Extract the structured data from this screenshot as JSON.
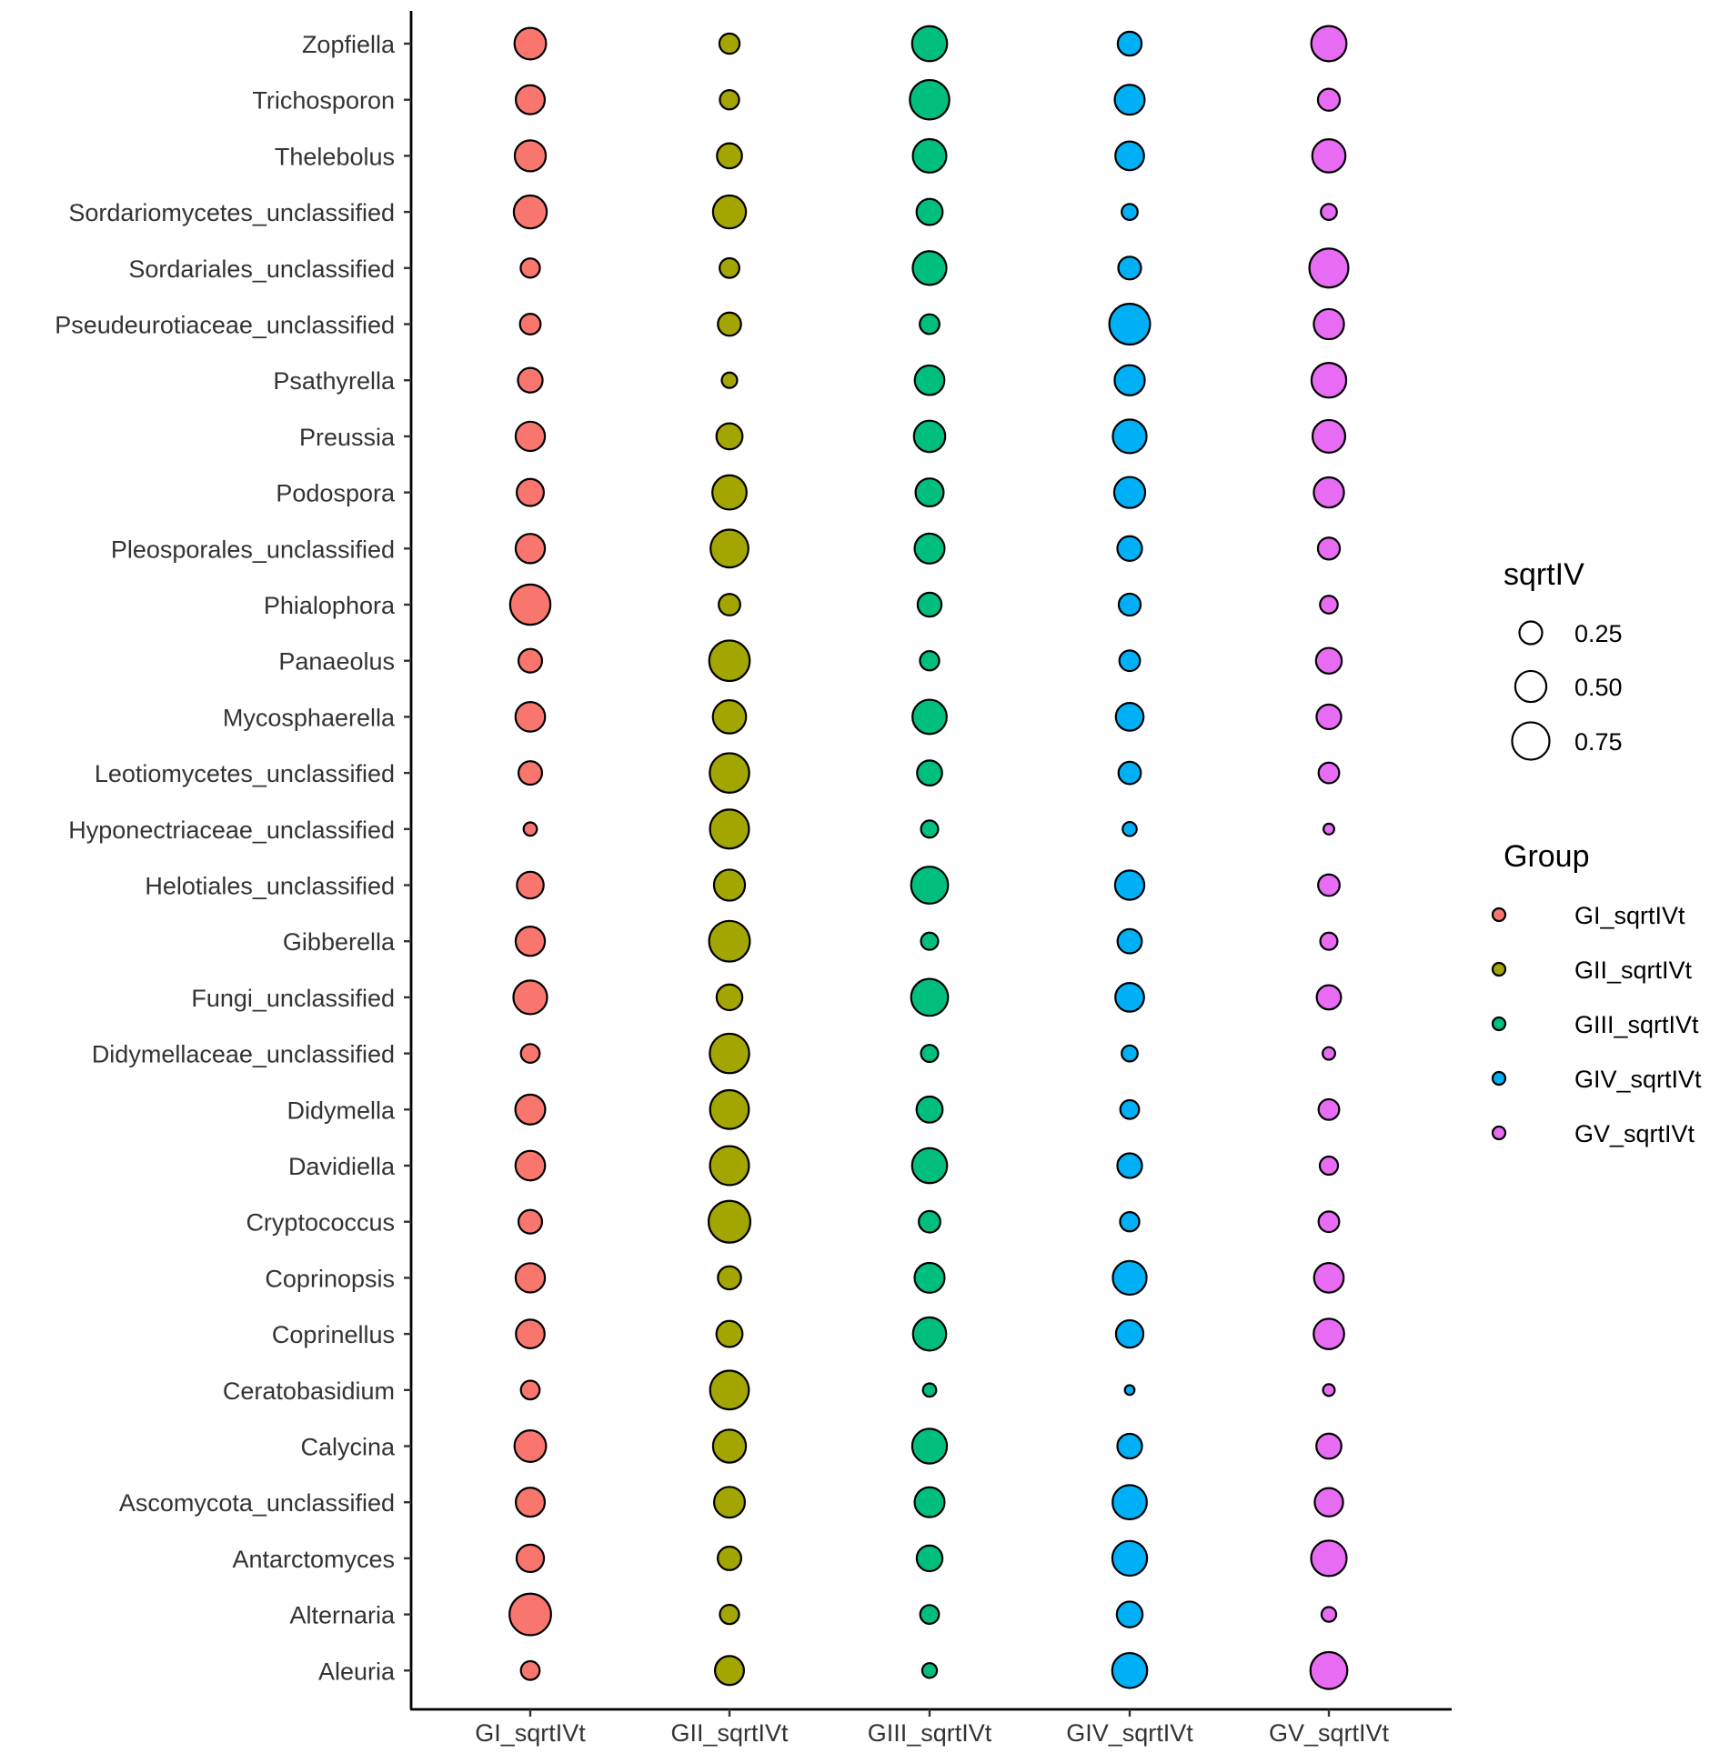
{
  "chart_data": {
    "type": "scatter",
    "title": "",
    "xlabel": "",
    "ylabel": "",
    "categories": [
      "GI_sqrtIVt",
      "GII_sqrtIVt",
      "GIII_sqrtIVt",
      "GIV_sqrtIVt",
      "GV_sqrtIVt"
    ],
    "taxa": [
      "Zopfiella",
      "Trichosporon",
      "Thelebolus",
      "Sordariomycetes_unclassified",
      "Sordariales_unclassified",
      "Pseudeurotiaceae_unclassified",
      "Psathyrella",
      "Preussia",
      "Podospora",
      "Pleosporales_unclassified",
      "Phialophora",
      "Panaeolus",
      "Mycosphaerella",
      "Leotiomycetes_unclassified",
      "Hyponectriaceae_unclassified",
      "Helotiales_unclassified",
      "Gibberella",
      "Fungi_unclassified",
      "Didymellaceae_unclassified",
      "Didymella",
      "Davidiella",
      "Cryptococcus",
      "Coprinopsis",
      "Coprinellus",
      "Ceratobasidium",
      "Calycina",
      "Ascomycota_unclassified",
      "Antarctomyces",
      "Alternaria",
      "Aleuria"
    ],
    "series": [
      {
        "name": "GI_sqrtIVt",
        "color": "#F8766D",
        "values": [
          0.52,
          0.43,
          0.5,
          0.57,
          0.17,
          0.2,
          0.3,
          0.44,
          0.37,
          0.44,
          0.88,
          0.27,
          0.45,
          0.27,
          0.07,
          0.36,
          0.44,
          0.6,
          0.16,
          0.46,
          0.45,
          0.27,
          0.44,
          0.42,
          0.16,
          0.52,
          0.43,
          0.38,
          0.94,
          0.16
        ]
      },
      {
        "name": "GII_sqrtIVt",
        "color": "#A3A500",
        "values": [
          0.19,
          0.17,
          0.31,
          0.57,
          0.18,
          0.26,
          0.1,
          0.34,
          0.62,
          0.77,
          0.22,
          0.89,
          0.58,
          0.84,
          0.82,
          0.5,
          0.9,
          0.33,
          0.84,
          0.81,
          0.82,
          0.95,
          0.26,
          0.34,
          0.81,
          0.57,
          0.49,
          0.27,
          0.17,
          0.43
        ]
      },
      {
        "name": "GIII_sqrtIVt",
        "color": "#00BF7D",
        "values": [
          0.65,
          0.84,
          0.59,
          0.34,
          0.6,
          0.18,
          0.45,
          0.51,
          0.4,
          0.46,
          0.28,
          0.17,
          0.62,
          0.31,
          0.13,
          0.73,
          0.13,
          0.73,
          0.13,
          0.34,
          0.65,
          0.22,
          0.46,
          0.58,
          0.07,
          0.64,
          0.46,
          0.33,
          0.16,
          0.09
        ]
      },
      {
        "name": "GIV_sqrtIVt",
        "color": "#00B0F6",
        "values": [
          0.28,
          0.46,
          0.42,
          0.11,
          0.25,
          0.9,
          0.47,
          0.6,
          0.5,
          0.3,
          0.23,
          0.2,
          0.39,
          0.24,
          0.08,
          0.44,
          0.29,
          0.42,
          0.11,
          0.16,
          0.3,
          0.17,
          0.6,
          0.38,
          0.03,
          0.3,
          0.62,
          0.64,
          0.33,
          0.65
        ]
      },
      {
        "name": "GV_sqrtIVt",
        "color": "#E76BF3",
        "values": [
          0.66,
          0.23,
          0.58,
          0.11,
          0.82,
          0.47,
          0.64,
          0.56,
          0.47,
          0.23,
          0.14,
          0.33,
          0.3,
          0.2,
          0.04,
          0.22,
          0.13,
          0.29,
          0.06,
          0.2,
          0.15,
          0.2,
          0.45,
          0.48,
          0.05,
          0.31,
          0.41,
          0.67,
          0.09,
          0.73
        ]
      }
    ],
    "size_legend": {
      "title": "sqrtIV",
      "values": [
        0.25,
        0.5,
        0.75
      ],
      "labels": [
        "0.25",
        "0.50",
        "0.75"
      ]
    },
    "color_legend": {
      "title": "Group",
      "labels": [
        "GI_sqrtIVt",
        "GII_sqrtIVt",
        "GIII_sqrtIVt",
        "GIV_sqrtIVt",
        "GV_sqrtIVt"
      ]
    },
    "legend_position": "right",
    "grid": false
  }
}
